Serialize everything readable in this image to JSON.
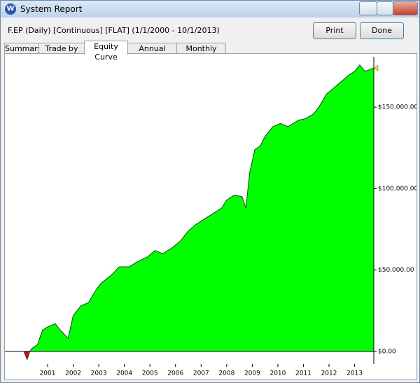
{
  "window": {
    "title": "System Report",
    "subtitle": "F.EP (Daily) [Continuous] [FLAT]  (1/1/2000 - 10/1/2013)",
    "buttons": [
      "Print",
      "Done"
    ],
    "tabs": [
      "Summary",
      "Trade by trade",
      "Equity Curve",
      "Annual Results",
      "Monthly Results"
    ]
  },
  "chart_data": {
    "type": "area",
    "x": [
      2000.07,
      2000.2,
      2000.3,
      2000.4,
      2000.6,
      2000.8,
      2001.0,
      2001.3,
      2001.5,
      2001.8,
      2002.0,
      2002.3,
      2002.6,
      2002.9,
      2003.1,
      2003.5,
      2003.8,
      2004.2,
      2004.5,
      2004.9,
      2005.2,
      2005.5,
      2005.9,
      2006.2,
      2006.5,
      2006.8,
      2007.2,
      2007.5,
      2007.8,
      2008.0,
      2008.3,
      2008.6,
      2008.75,
      2008.9,
      2009.1,
      2009.3,
      2009.5,
      2009.8,
      2010.1,
      2010.4,
      2010.8,
      2011.1,
      2011.4,
      2011.6,
      2011.9,
      2012.2,
      2012.5,
      2012.8,
      2013.0,
      2013.2,
      2013.4,
      2013.75
    ],
    "values": [
      0,
      -5000,
      0,
      2000,
      4000,
      13000,
      15000,
      17000,
      13000,
      8000,
      22000,
      28000,
      30000,
      38000,
      42000,
      47000,
      52000,
      52000,
      55000,
      58000,
      62000,
      60000,
      64000,
      68000,
      74000,
      78000,
      82000,
      85000,
      88000,
      93000,
      96000,
      95000,
      88000,
      110000,
      124000,
      126000,
      132000,
      138000,
      140000,
      138000,
      142000,
      143000,
      146000,
      150000,
      158000,
      162000,
      166000,
      170000,
      172000,
      176000,
      172000,
      174000
    ],
    "color": "#00ff00",
    "negative_color": "#e8001c",
    "line_color": "#005000",
    "xlim": [
      1999.33,
      2013.75
    ],
    "xticks": [
      2001,
      2002,
      2003,
      2004,
      2005,
      2006,
      2007,
      2008,
      2009,
      2010,
      2011,
      2012,
      2013
    ],
    "ylim": [
      -7800,
      181000
    ],
    "yticks": [
      {
        "value": 0,
        "label": "$0.00"
      },
      {
        "value": 50000,
        "label": "$50,000.00"
      },
      {
        "value": 100000,
        "label": "$100,000.00"
      },
      {
        "value": 150000,
        "label": "$150,000.00"
      }
    ]
  }
}
